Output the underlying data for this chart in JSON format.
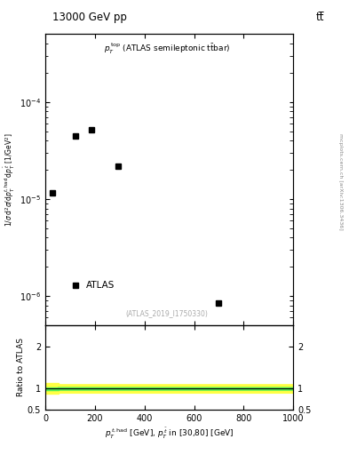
{
  "title_left": "13000 GeV pp",
  "title_right": "tt̅",
  "ref_label": "(ATLAS_2019_I1750330)",
  "right_axis_label": "mcplots.cern.ch [arXiv:1306.3436]",
  "xlim": [
    0,
    1000
  ],
  "ylim_log": [
    5e-07,
    0.0005
  ],
  "ylim_ratio": [
    0.5,
    2.5
  ],
  "data_x": [
    30,
    120,
    185,
    295,
    700
  ],
  "data_y": [
    1.15e-05,
    4.5e-05,
    5.2e-05,
    2.2e-05,
    8.5e-07
  ],
  "atlas_point_x": 120,
  "atlas_point_y": 1.3e-06,
  "ratio_band_yellow_low": 0.9,
  "ratio_band_yellow_high": 1.1,
  "ratio_band_green_low": 0.97,
  "ratio_band_green_high": 1.03,
  "ratio_line_y": 1.0,
  "marker_color": "#000000",
  "marker_style": "s",
  "marker_size": 4,
  "band_yellow_color": "#ffff44",
  "band_green_color": "#55ee55",
  "ratio_line_color": "black",
  "yticks_ratio": [
    0.5,
    1.0,
    2.0
  ],
  "ytick_labels_ratio": [
    "0.5",
    "1",
    "2"
  ]
}
